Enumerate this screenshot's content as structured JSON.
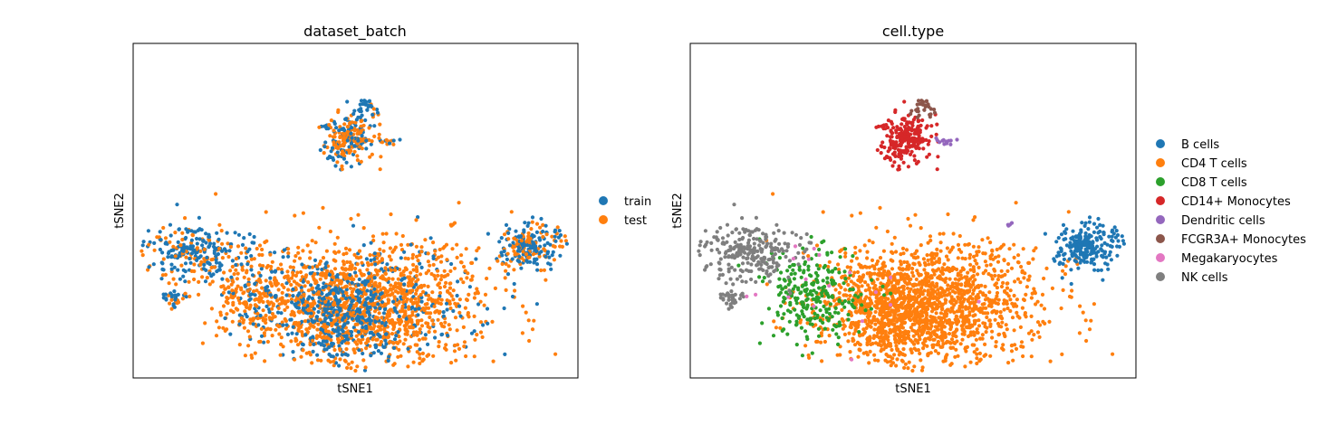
{
  "chart_data": [
    {
      "type": "scatter",
      "title": "dataset_batch",
      "xlabel": "tSNE1",
      "ylabel": "tSNE2",
      "grid": false,
      "ticks": false,
      "legend_position": "right",
      "series": [
        {
          "name": "train",
          "color": "#1f77b4"
        },
        {
          "name": "test",
          "color": "#ff7f0e"
        }
      ]
    },
    {
      "type": "scatter",
      "title": "cell.type",
      "xlabel": "tSNE1",
      "ylabel": "tSNE2",
      "grid": false,
      "ticks": false,
      "legend_position": "right",
      "series": [
        {
          "name": "B cells",
          "color": "#1f77b4"
        },
        {
          "name": "CD4 T cells",
          "color": "#ff7f0e"
        },
        {
          "name": "CD8 T cells",
          "color": "#2ca02c"
        },
        {
          "name": "CD14+ Monocytes",
          "color": "#d62728"
        },
        {
          "name": "Dendritic cells",
          "color": "#9467bd"
        },
        {
          "name": "FCGR3A+ Monocytes",
          "color": "#8c564b"
        },
        {
          "name": "Megakaryocytes",
          "color": "#e377c2"
        },
        {
          "name": "NK cells",
          "color": "#7f7f7f"
        }
      ]
    }
  ]
}
